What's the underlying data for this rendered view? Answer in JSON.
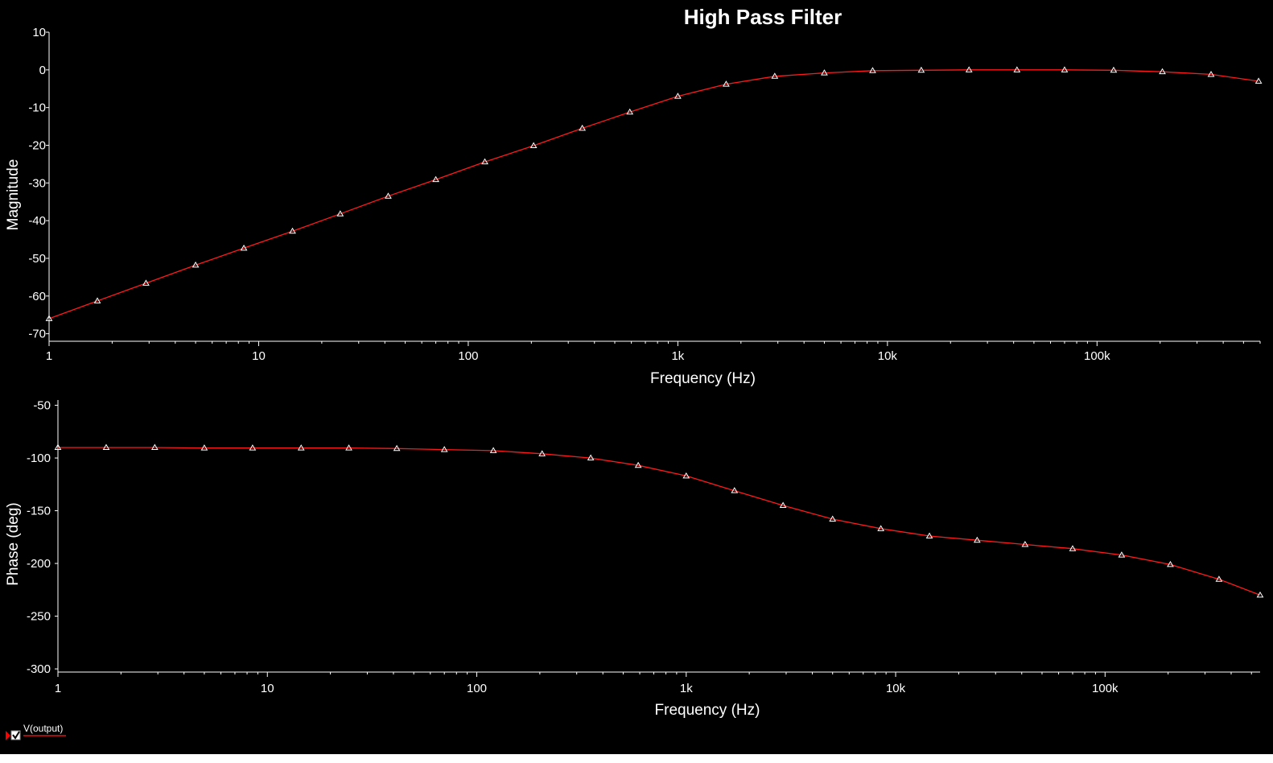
{
  "title": "High Pass Filter",
  "colors": {
    "background": "#000000",
    "trace": "#ff1a1a",
    "marker": "#ffffff",
    "axis": "#ffffff",
    "text": "#ffffff",
    "legend_arrow": "#ff0000"
  },
  "legend": {
    "label": "V(output)",
    "checked": true
  },
  "chart_data": [
    {
      "type": "line",
      "title": "High Pass Filter",
      "xlabel": "Frequency (Hz)",
      "ylabel": "Magnitude",
      "xscale": "log",
      "xlim": [
        1,
        600000
      ],
      "ylim": [
        -72,
        10
      ],
      "xticks": [
        1,
        10,
        100,
        1000,
        10000,
        100000
      ],
      "xtick_labels": [
        "1",
        "10",
        "100",
        "1k",
        "10k",
        "100k"
      ],
      "yticks": [
        10,
        0,
        -10,
        -20,
        -30,
        -40,
        -50,
        -60,
        -70
      ],
      "ytick_labels": [
        "10",
        "0",
        "-10",
        "-20",
        "-30",
        "-40",
        "-50",
        "-60",
        "-70"
      ],
      "grid": false,
      "series": [
        {
          "name": "V(output)",
          "markers": "triangle",
          "x": [
            1,
            1.7,
            2.9,
            5,
            8.5,
            14.5,
            24.5,
            41.5,
            70,
            120,
            205,
            350,
            590,
            1000,
            1700,
            2900,
            5000,
            8500,
            14500,
            24500,
            41500,
            70000,
            120000,
            205000,
            350000,
            590000
          ],
          "y": [
            -66,
            -61.3,
            -56.6,
            -51.8,
            -47.3,
            -42.8,
            -38.2,
            -33.5,
            -29.1,
            -24.4,
            -20.1,
            -15.5,
            -11.2,
            -7,
            -3.8,
            -1.7,
            -0.8,
            -0.2,
            -0.1,
            0,
            0,
            0,
            -0.1,
            -0.5,
            -1.2,
            -3
          ]
        }
      ]
    },
    {
      "type": "line",
      "xlabel": "Frequency (Hz)",
      "ylabel": "Phase (deg)",
      "xscale": "log",
      "xlim": [
        1,
        550000
      ],
      "ylim": [
        -303,
        -45
      ],
      "xticks": [
        1,
        10,
        100,
        1000,
        10000,
        100000
      ],
      "xtick_labels": [
        "1",
        "10",
        "100",
        "1k",
        "10k",
        "100k"
      ],
      "yticks": [
        -50,
        -100,
        -150,
        -200,
        -250,
        -300
      ],
      "ytick_labels": [
        "-50",
        "-100",
        "-150",
        "-200",
        "-250",
        "-300"
      ],
      "grid": false,
      "series": [
        {
          "name": "V(output)",
          "markers": "triangle",
          "x": [
            1,
            1.7,
            2.9,
            5,
            8.5,
            14.5,
            24.5,
            41.5,
            70,
            120,
            205,
            350,
            590,
            1000,
            1700,
            2900,
            5000,
            8500,
            14500,
            24500,
            41500,
            70000,
            120000,
            205000,
            350000,
            550000
          ],
          "y": [
            -90,
            -90,
            -90,
            -90.5,
            -90.5,
            -90.5,
            -90.5,
            -91,
            -92,
            -93,
            -96,
            -100,
            -107,
            -117,
            -131,
            -145,
            -158,
            -167,
            -174,
            -178,
            -182,
            -186,
            -192,
            -201,
            -215,
            -230
          ]
        }
      ]
    }
  ]
}
